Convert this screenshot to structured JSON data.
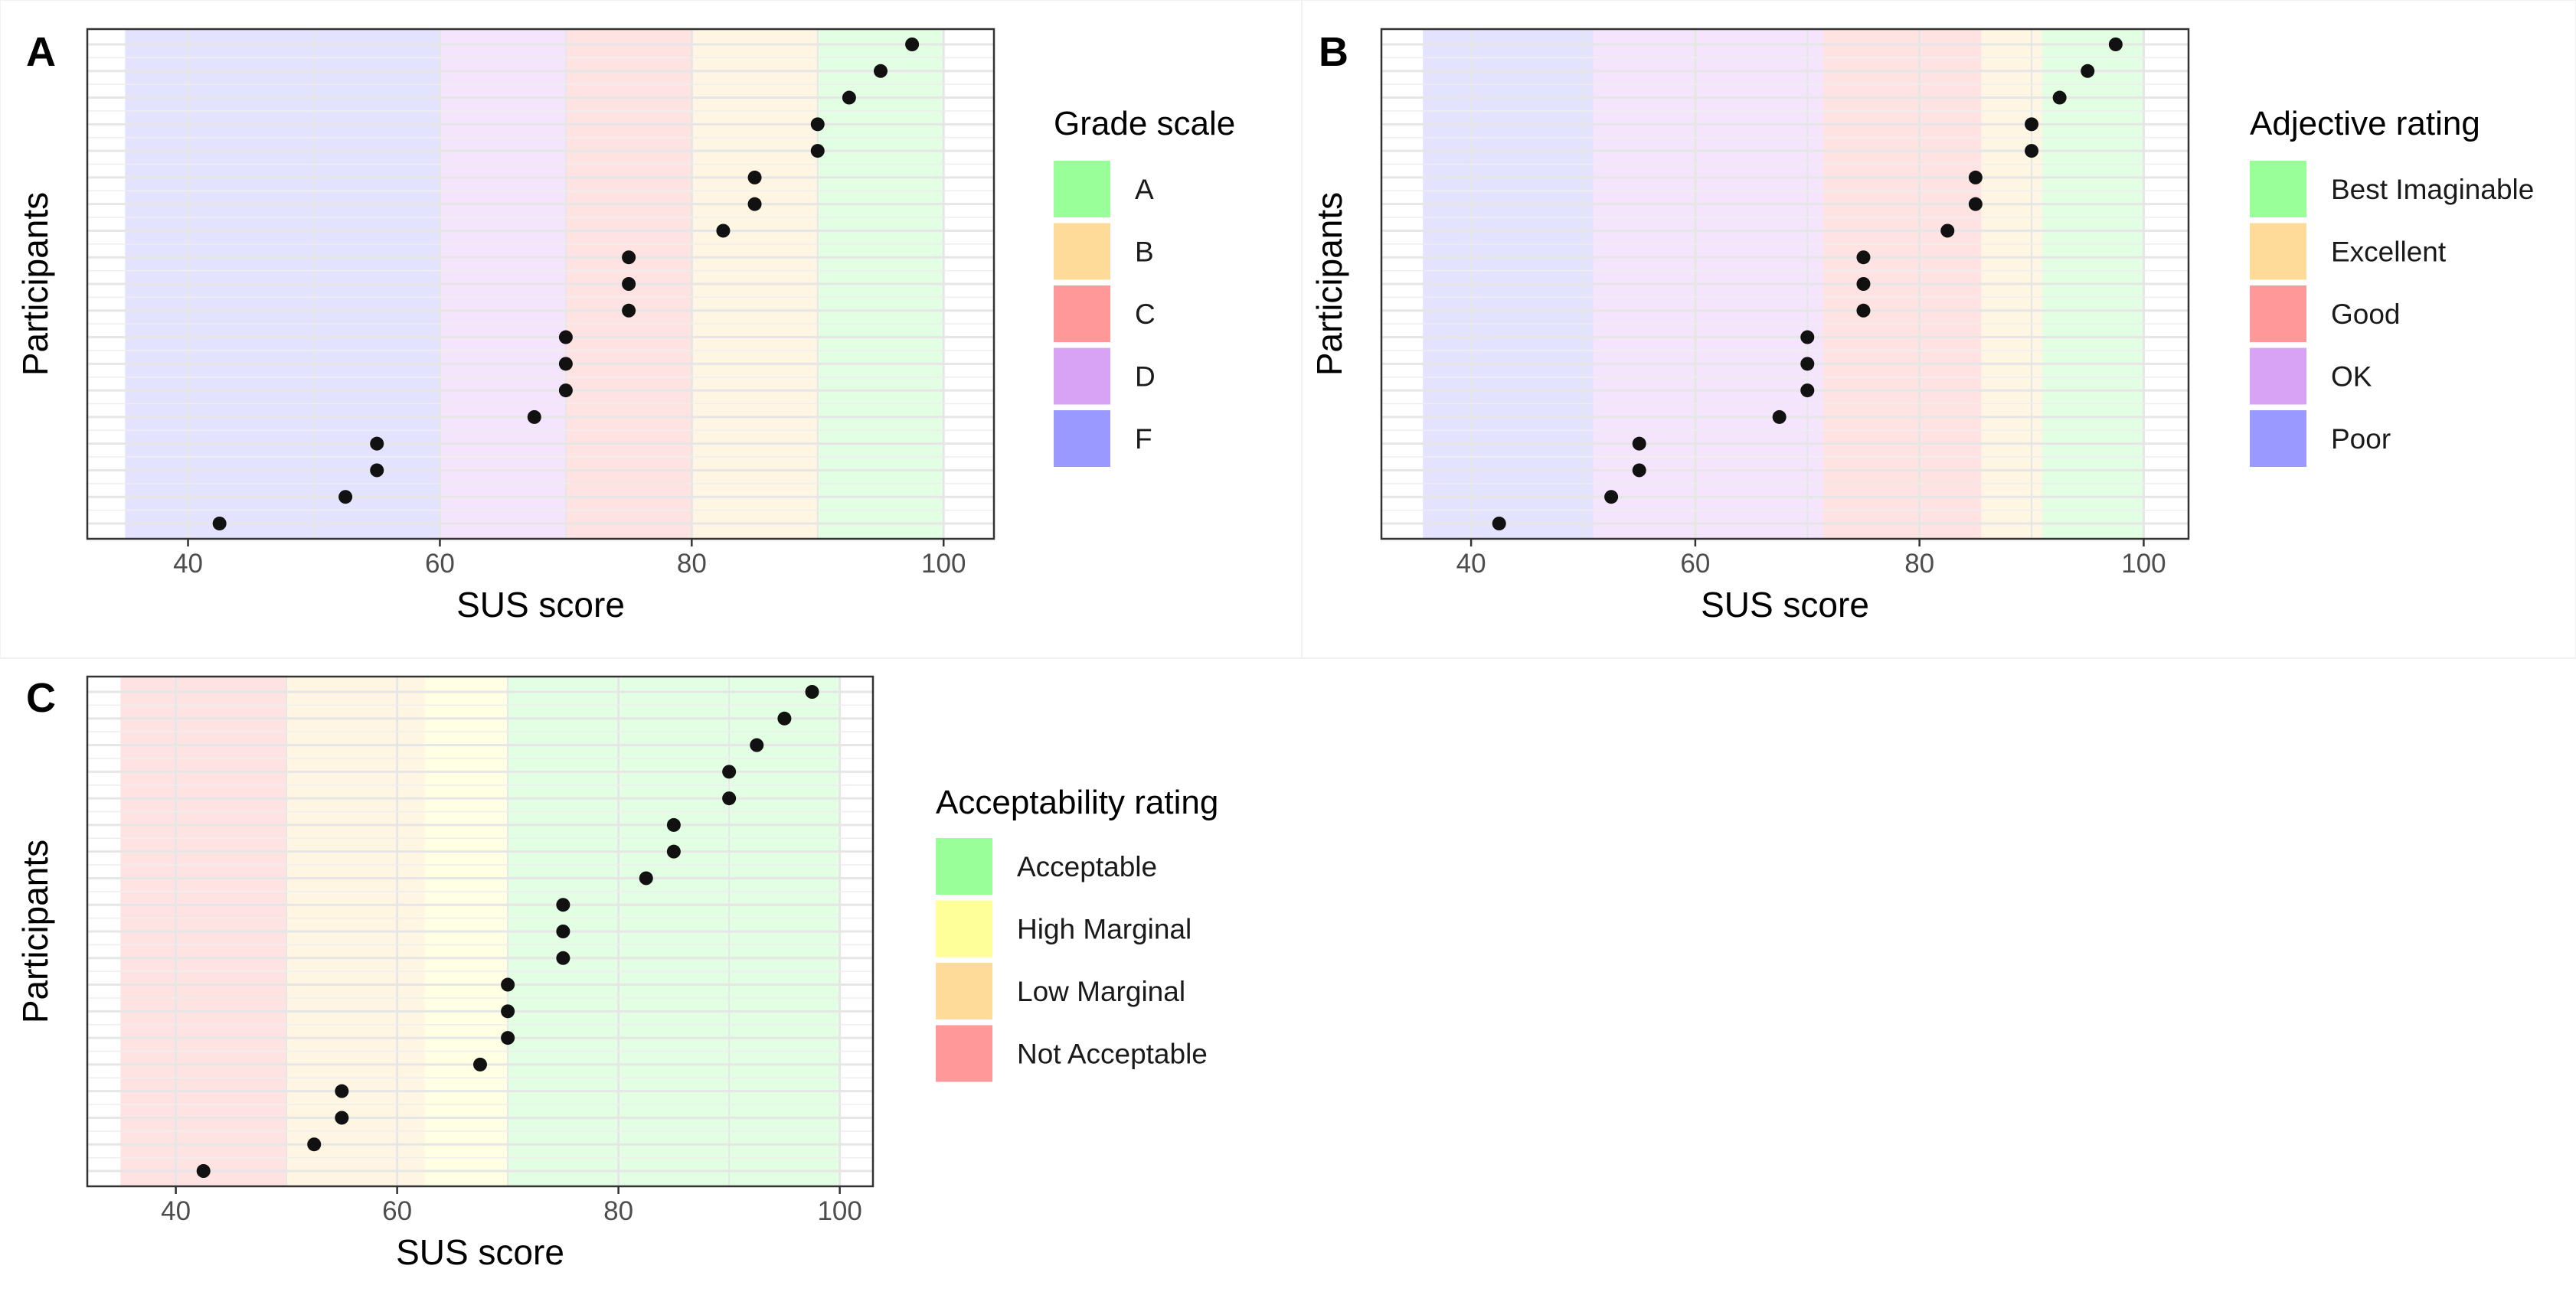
{
  "figure": {
    "panels": [
      "A",
      "B",
      "C"
    ],
    "chart_data": [
      {
        "type": "scatter",
        "panel_label": "A",
        "xlabel": "SUS score",
        "ylabel": "Participants",
        "xlim": [
          32,
          104
        ],
        "xticks": [
          40,
          60,
          80,
          100
        ],
        "x_values": [
          97.5,
          95,
          92.5,
          90,
          90,
          85,
          85,
          82.5,
          75,
          75,
          75,
          70,
          70,
          70,
          67.5,
          55,
          55,
          52.5,
          42.5
        ],
        "legend_title": "Grade scale",
        "bands": [
          {
            "label": "F",
            "from": 35,
            "to": 60,
            "color": "#9999ff"
          },
          {
            "label": "D",
            "from": 60,
            "to": 70,
            "color": "#d9a3f5"
          },
          {
            "label": "C",
            "from": 70,
            "to": 80,
            "color": "#ff9999"
          },
          {
            "label": "B",
            "from": 80,
            "to": 90,
            "color": "#ffdb99"
          },
          {
            "label": "A",
            "from": 90,
            "to": 100,
            "color": "#99ff99"
          }
        ],
        "legend_items": [
          "A",
          "B",
          "C",
          "D",
          "F"
        ]
      },
      {
        "type": "scatter",
        "panel_label": "B",
        "xlabel": "SUS score",
        "ylabel": "Participants",
        "xlim": [
          32,
          104
        ],
        "xticks": [
          40,
          60,
          80,
          100
        ],
        "x_values": [
          97.5,
          95,
          92.5,
          90,
          90,
          85,
          85,
          82.5,
          75,
          75,
          75,
          70,
          70,
          70,
          67.5,
          55,
          55,
          52.5,
          42.5
        ],
        "legend_title": "Adjective rating",
        "bands": [
          {
            "label": "Poor",
            "from": 35.7,
            "to": 50.9,
            "color": "#9999ff"
          },
          {
            "label": "OK",
            "from": 50.9,
            "to": 71.4,
            "color": "#d9a3f5"
          },
          {
            "label": "Good",
            "from": 71.4,
            "to": 85.5,
            "color": "#ff9999"
          },
          {
            "label": "Excellent",
            "from": 85.5,
            "to": 90.9,
            "color": "#ffdb99"
          },
          {
            "label": "Best Imaginable",
            "from": 90.9,
            "to": 100,
            "color": "#99ff99"
          }
        ],
        "legend_items": [
          "Best Imaginable",
          "Excellent",
          "Good",
          "OK",
          "Poor"
        ]
      },
      {
        "type": "scatter",
        "panel_label": "C",
        "xlabel": "SUS score",
        "ylabel": "Participants",
        "xlim": [
          32,
          103
        ],
        "xticks": [
          40,
          60,
          80,
          100
        ],
        "x_values": [
          97.5,
          95,
          92.5,
          90,
          90,
          85,
          85,
          82.5,
          75,
          75,
          75,
          70,
          70,
          70,
          67.5,
          55,
          55,
          52.5,
          42.5
        ],
        "legend_title": "Acceptability rating",
        "bands": [
          {
            "label": "Not Acceptable",
            "from": 35,
            "to": 50,
            "color": "#ff9999"
          },
          {
            "label": "Low Marginal",
            "from": 50,
            "to": 62.5,
            "color": "#ffdb99"
          },
          {
            "label": "High Marginal",
            "from": 62.5,
            "to": 70,
            "color": "#ffff99"
          },
          {
            "label": "Acceptable",
            "from": 70,
            "to": 100,
            "color": "#99ff99"
          }
        ],
        "legend_items": [
          "Acceptable",
          "High Marginal",
          "Low Marginal",
          "Not Acceptable"
        ]
      }
    ]
  }
}
